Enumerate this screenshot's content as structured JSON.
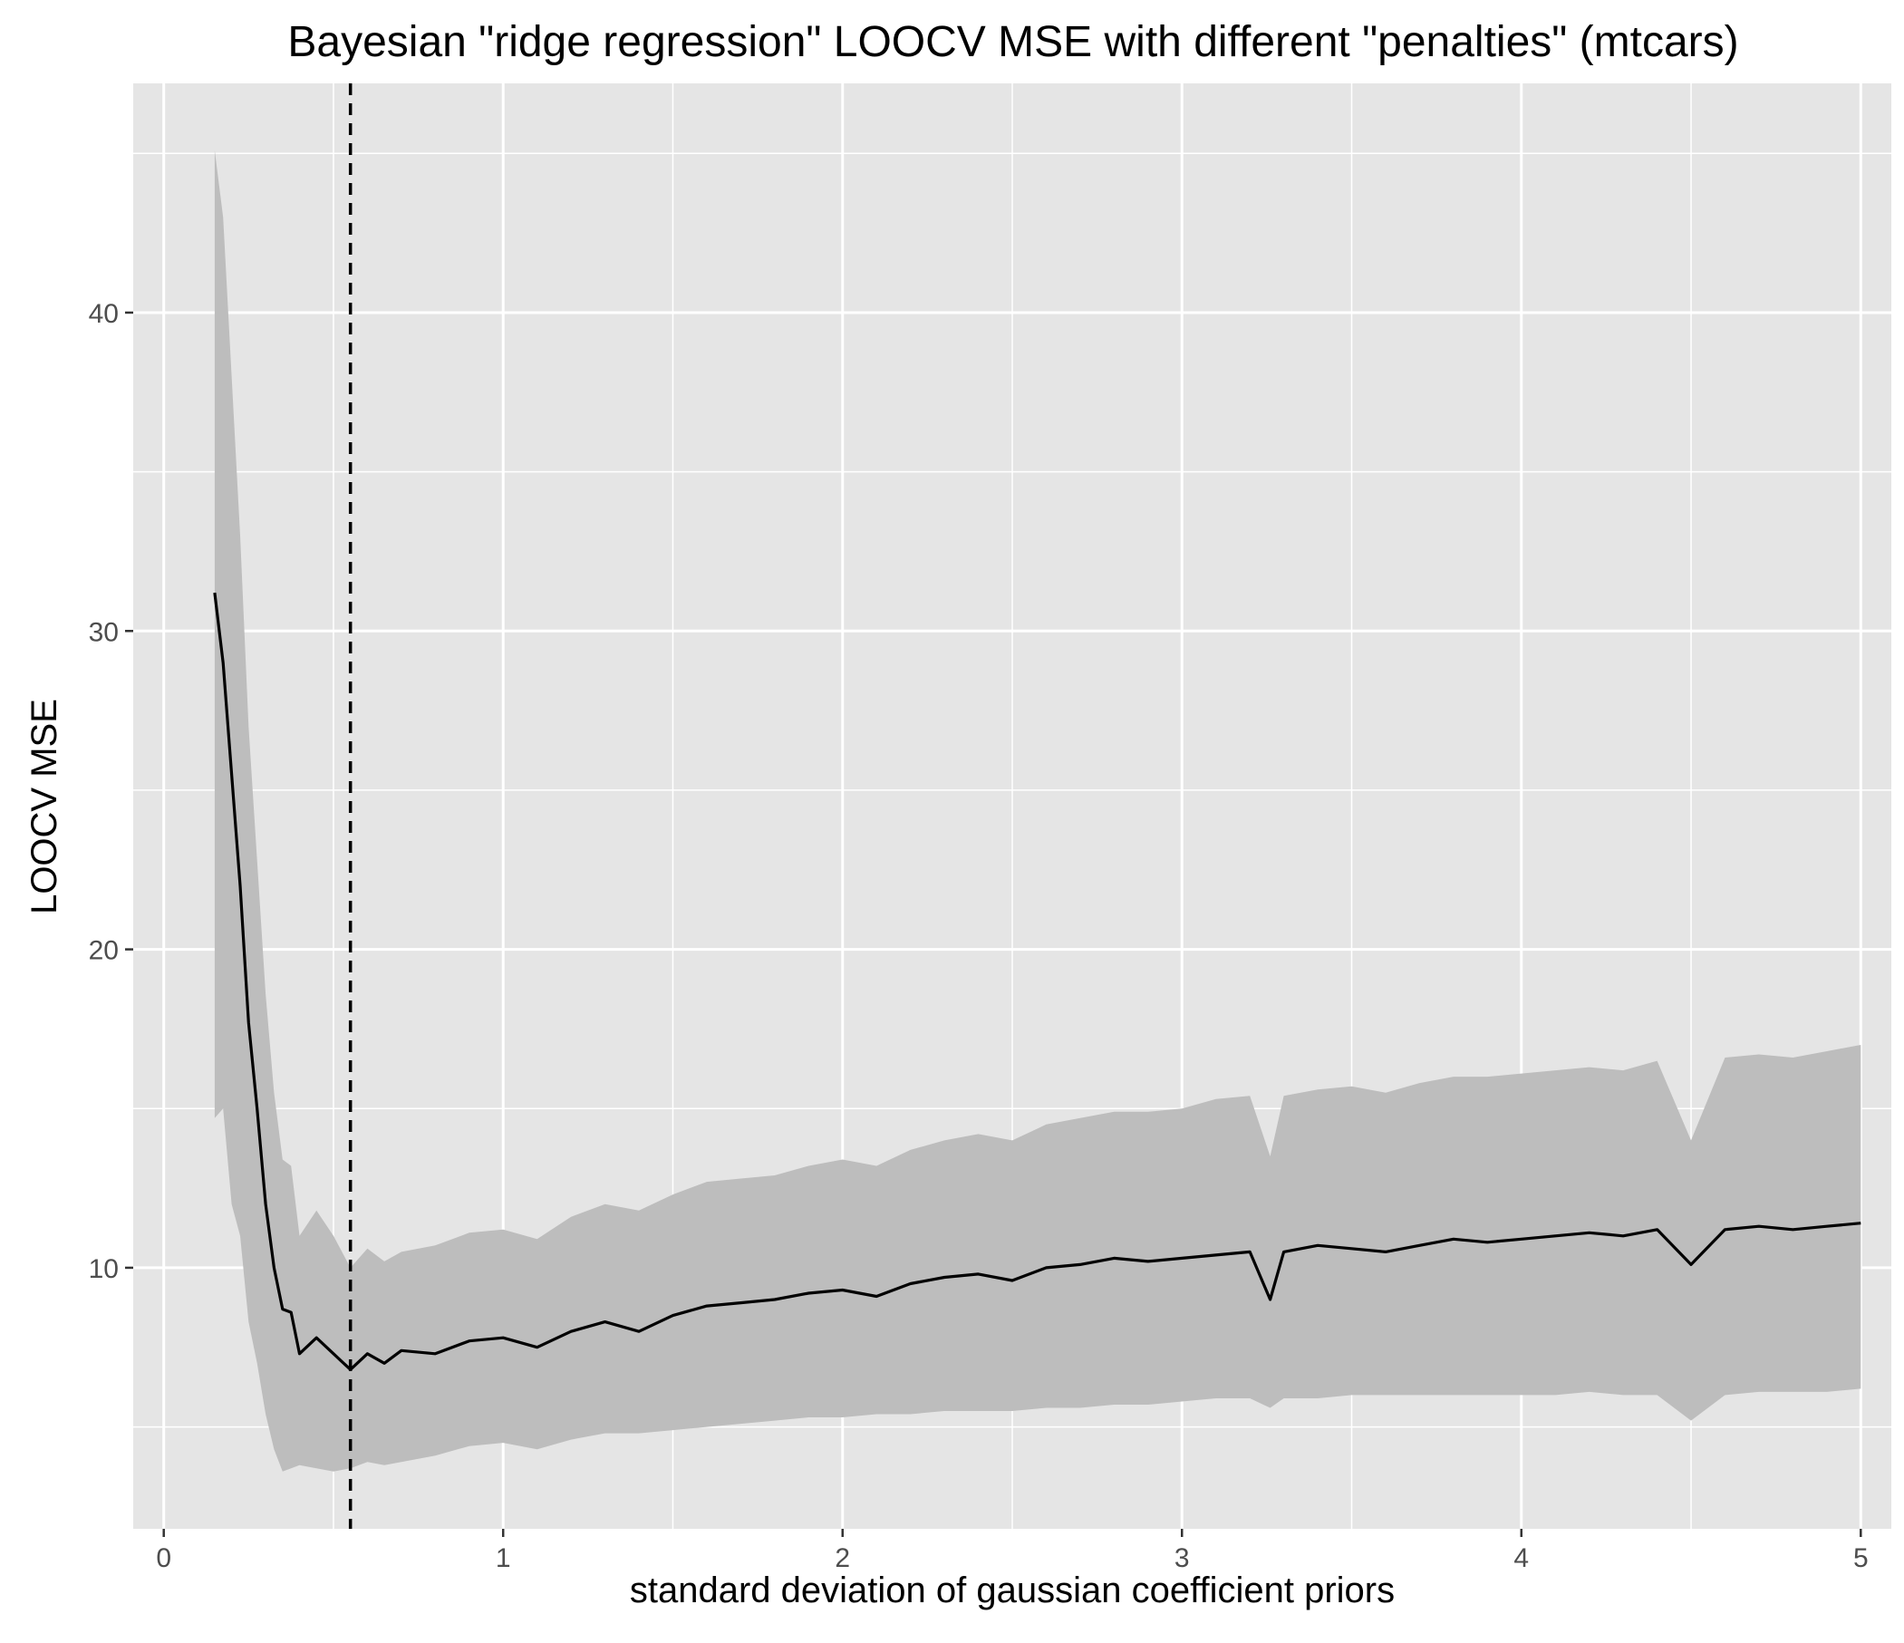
{
  "chart_data": {
    "type": "line",
    "title": "Bayesian \"ridge regression\" LOOCV MSE with different \"penalties\" (mtcars)",
    "xlabel": "standard deviation of gaussian coefficient priors",
    "ylabel": "LOOCV MSE",
    "xlim": [
      -0.09,
      5.09
    ],
    "ylim": [
      1.8,
      47.2
    ],
    "x_ticks": [
      0,
      1,
      2,
      3,
      4,
      5
    ],
    "y_ticks": [
      10,
      20,
      30,
      40
    ],
    "x_tick_labels": [
      "0",
      "1",
      "2",
      "3",
      "4",
      "5"
    ],
    "y_tick_labels": [
      "10",
      "20",
      "30",
      "40"
    ],
    "grid": true,
    "legend": "none",
    "colors": {
      "panel": "#e5e5e5",
      "grid": "#ffffff",
      "ribbon": "#bdbdbd",
      "line": "#000000",
      "tick": "#4d4d4d"
    },
    "reference_line": {
      "axis": "x",
      "value": 0.55,
      "style": "dashed"
    },
    "series": [
      {
        "x": [
          0.15,
          0.175,
          0.2,
          0.225,
          0.25,
          0.275,
          0.3,
          0.325,
          0.35,
          0.375,
          0.4,
          0.45,
          0.5,
          0.55,
          0.6,
          0.65,
          0.7,
          0.8,
          0.9,
          1.0,
          1.1,
          1.2,
          1.3,
          1.4,
          1.5,
          1.6,
          1.7,
          1.8,
          1.9,
          2.0,
          2.1,
          2.2,
          2.3,
          2.4,
          2.5,
          2.6,
          2.7,
          2.8,
          2.9,
          3.0,
          3.1,
          3.2,
          3.26,
          3.3,
          3.4,
          3.5,
          3.6,
          3.7,
          3.8,
          3.9,
          4.0,
          4.1,
          4.2,
          4.3,
          4.4,
          4.5,
          4.6,
          4.7,
          4.8,
          4.9,
          5.0
        ],
        "y": [
          31.2,
          29.0,
          25.5,
          22.0,
          17.7,
          15.0,
          12.0,
          10.0,
          8.7,
          8.6,
          7.3,
          7.8,
          7.3,
          6.8,
          7.3,
          7.0,
          7.4,
          7.3,
          7.7,
          7.8,
          7.5,
          8.0,
          8.3,
          8.0,
          8.5,
          8.8,
          8.9,
          9.0,
          9.2,
          9.3,
          9.1,
          9.5,
          9.7,
          9.8,
          9.6,
          10.0,
          10.1,
          10.3,
          10.2,
          10.3,
          10.4,
          10.5,
          9.0,
          10.5,
          10.7,
          10.6,
          10.5,
          10.7,
          10.9,
          10.8,
          10.9,
          11.0,
          11.1,
          11.0,
          11.2,
          10.1,
          11.2,
          11.3,
          11.2,
          11.3,
          11.4
        ],
        "lower": [
          14.7,
          15.0,
          12.0,
          11.0,
          8.3,
          7.0,
          5.4,
          4.3,
          3.6,
          3.7,
          3.8,
          3.7,
          3.6,
          3.7,
          3.9,
          3.8,
          3.9,
          4.1,
          4.4,
          4.5,
          4.3,
          4.6,
          4.8,
          4.8,
          4.9,
          5.0,
          5.1,
          5.2,
          5.3,
          5.3,
          5.4,
          5.4,
          5.5,
          5.5,
          5.5,
          5.6,
          5.6,
          5.7,
          5.7,
          5.8,
          5.9,
          5.9,
          5.6,
          5.9,
          5.9,
          6.0,
          6.0,
          6.0,
          6.0,
          6.0,
          6.0,
          6.0,
          6.1,
          6.0,
          6.0,
          5.2,
          6.0,
          6.1,
          6.1,
          6.1,
          6.2
        ],
        "upper": [
          45.1,
          43.0,
          38.0,
          33.0,
          27.0,
          22.8,
          18.6,
          15.5,
          13.4,
          13.2,
          11.0,
          11.8,
          11.0,
          10.0,
          10.6,
          10.2,
          10.5,
          10.7,
          11.1,
          11.2,
          10.9,
          11.6,
          12.0,
          11.8,
          12.3,
          12.7,
          12.8,
          12.9,
          13.2,
          13.4,
          13.2,
          13.7,
          14.0,
          14.2,
          14.0,
          14.5,
          14.7,
          14.9,
          14.9,
          15.0,
          15.3,
          15.4,
          13.5,
          15.4,
          15.6,
          15.7,
          15.5,
          15.8,
          16.0,
          16.0,
          16.1,
          16.2,
          16.3,
          16.2,
          16.5,
          14.0,
          16.6,
          16.7,
          16.6,
          16.8,
          17.0
        ]
      }
    ]
  }
}
